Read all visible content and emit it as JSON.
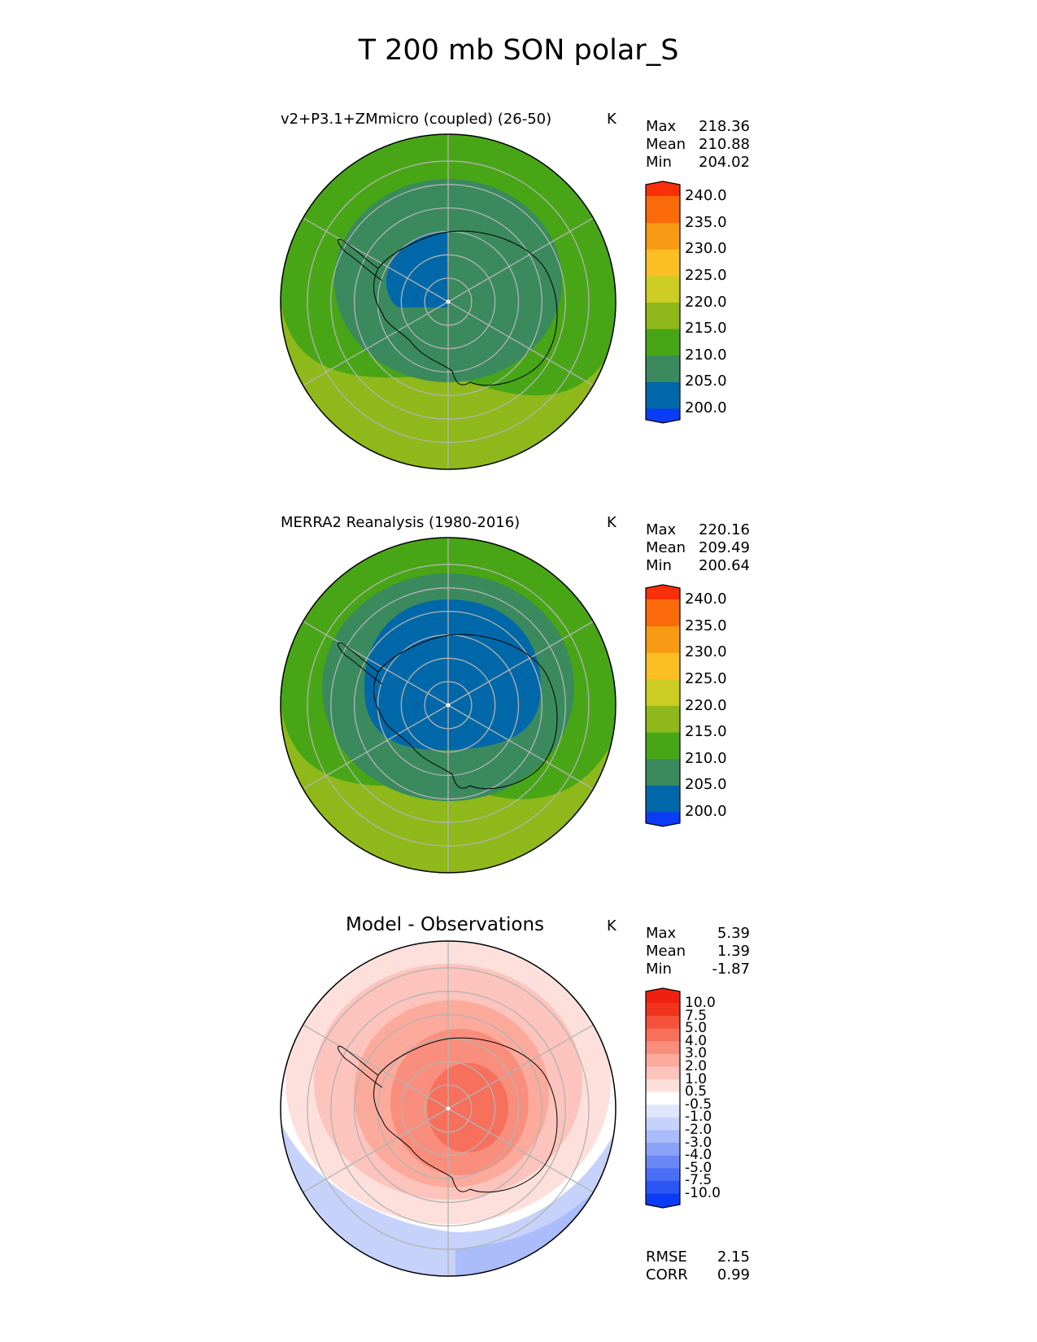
{
  "figure": {
    "title": "T 200 mb SON polar_S",
    "units": "K"
  },
  "panels": [
    {
      "title": "v2+P3.1+ZMmicro (coupled) (26-50)",
      "units": "K",
      "stats": [
        {
          "label": "Max",
          "value": "218.36"
        },
        {
          "label": "Mean",
          "value": "210.88"
        },
        {
          "label": "Min",
          "value": "204.02"
        }
      ]
    },
    {
      "title": "MERRA2 Reanalysis (1980-2016)",
      "units": "K",
      "stats": [
        {
          "label": "Max",
          "value": "220.16"
        },
        {
          "label": "Mean",
          "value": "209.49"
        },
        {
          "label": "Min",
          "value": "200.64"
        }
      ]
    },
    {
      "title": "Model - Observations",
      "units": "K",
      "stats": [
        {
          "label": "Max",
          "value": "5.39"
        },
        {
          "label": "Mean",
          "value": "1.39"
        },
        {
          "label": "Min",
          "value": "-1.87"
        }
      ],
      "metrics": [
        {
          "label": "RMSE",
          "value": "2.15"
        },
        {
          "label": "CORR",
          "value": "0.99"
        }
      ]
    }
  ],
  "colorbars": {
    "absolute": {
      "levels": [
        200,
        205,
        210,
        215,
        220,
        225,
        230,
        235,
        240
      ],
      "labels": [
        "240.0",
        "235.0",
        "230.0",
        "225.0",
        "220.0",
        "215.0",
        "210.0",
        "205.0",
        "200.0"
      ],
      "colors": [
        "#0a3cf5",
        "#0068a8",
        "#3a8a5e",
        "#48a616",
        "#8fb81a",
        "#cccc22",
        "#fbbf24",
        "#f99a14",
        "#fb6a0a",
        "#f92f0a"
      ]
    },
    "difference": {
      "levels": [
        -10,
        -7.5,
        -5,
        -4,
        -3,
        -2,
        -1,
        -0.5,
        0.5,
        1,
        2,
        3,
        4,
        5,
        7.5,
        10
      ],
      "labels": [
        "10.0",
        "7.5",
        "5.0",
        "4.0",
        "3.0",
        "2.0",
        "1.0",
        "0.5",
        "-0.5",
        "-1.0",
        "-2.0",
        "-3.0",
        "-4.0",
        "-5.0",
        "-7.5",
        "-10.0"
      ],
      "colors": [
        "#0a3cf5",
        "#2c55f5",
        "#4a6ef5",
        "#6a88f5",
        "#8aa2f7",
        "#aabcf9",
        "#c6d2fa",
        "#e0e6fc",
        "#ffffff",
        "#fde0dc",
        "#fcc4bc",
        "#fbaa9c",
        "#fa8e7c",
        "#f7705c",
        "#f5523c",
        "#f2331c",
        "#f02010"
      ]
    }
  },
  "chart_data": [
    {
      "type": "heatmap",
      "projection": "south-polar-stereographic",
      "title": "v2+P3.1+ZMmicro (coupled) (26-50)",
      "variable": "T 200 mb",
      "units": "K",
      "field_regions": [
        {
          "level_range": [
            215,
            220
          ],
          "region": "outer ring, strongest in Pacific sector"
        },
        {
          "level_range": [
            210,
            215
          ],
          "region": "mid-latitude ring"
        },
        {
          "level_range": [
            205,
            210
          ],
          "region": "polar cap"
        },
        {
          "level_range": [
            200,
            205
          ],
          "region": "small pool over West Antarctic / Weddell sector"
        }
      ],
      "max": 218.36,
      "mean": 210.88,
      "min": 204.02
    },
    {
      "type": "heatmap",
      "projection": "south-polar-stereographic",
      "title": "MERRA2 Reanalysis (1980-2016)",
      "variable": "T 200 mb",
      "units": "K",
      "field_regions": [
        {
          "level_range": [
            215,
            220
          ],
          "region": "outer ring, Pacific sector"
        },
        {
          "level_range": [
            210,
            215
          ],
          "region": "mid-latitude ring"
        },
        {
          "level_range": [
            205,
            210
          ],
          "region": "ring around cold core"
        },
        {
          "level_range": [
            200,
            205
          ],
          "region": "broad cold core over Antarctica"
        }
      ],
      "max": 220.16,
      "mean": 209.49,
      "min": 200.64
    },
    {
      "type": "heatmap",
      "projection": "south-polar-stereographic",
      "title": "Model - Observations",
      "variable": "T 200 mb difference",
      "units": "K",
      "field_regions": [
        {
          "level_range": [
            4,
            5
          ],
          "region": "center near pole"
        },
        {
          "level_range": [
            2,
            4
          ],
          "region": "East Antarctic plateau"
        },
        {
          "level_range": [
            0.5,
            2
          ],
          "region": "high latitudes"
        },
        {
          "level_range": [
            -0.5,
            0.5
          ],
          "region": "ring near 50S"
        },
        {
          "level_range": [
            -2,
            -0.5
          ],
          "region": "Pacific sector edge"
        }
      ],
      "max": 5.39,
      "mean": 1.39,
      "min": -1.87,
      "rmse": 2.15,
      "corr": 0.99
    }
  ]
}
